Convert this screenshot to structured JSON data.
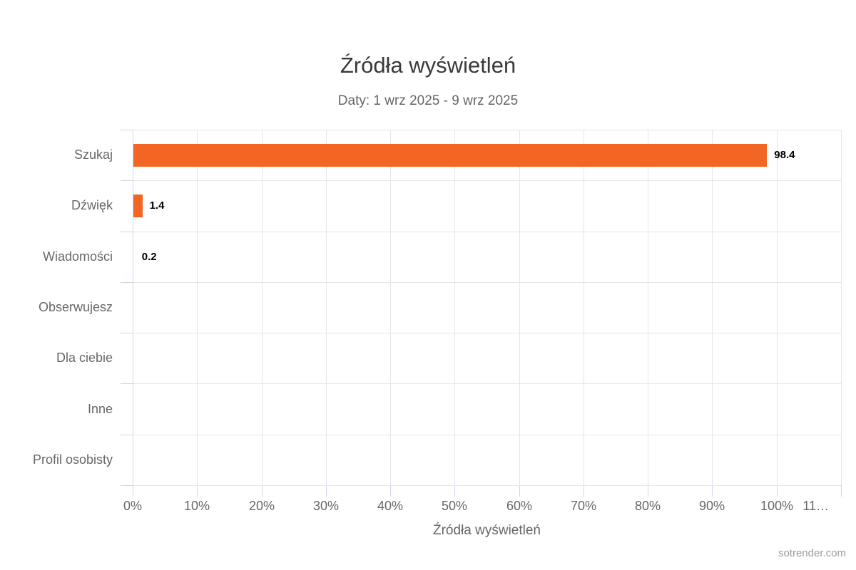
{
  "chart_data": {
    "type": "bar",
    "orientation": "horizontal",
    "title": "Źródła wyświetleń",
    "subtitle": "Daty: 1 wrz 2025 - 9 wrz 2025",
    "categories": [
      "Szukaj",
      "Dźwięk",
      "Wiadomości",
      "Obserwujesz",
      "Dla ciebie",
      "Inne",
      "Profil osobisty"
    ],
    "values": [
      98.4,
      1.4,
      0.2,
      null,
      null,
      null,
      null
    ],
    "value_labels": [
      "98.4",
      "1.4",
      "0.2",
      "",
      "",
      "",
      ""
    ],
    "xlabel": "Źródła wyświetleń",
    "x_ticks": [
      "0%",
      "10%",
      "20%",
      "30%",
      "40%",
      "50%",
      "60%",
      "70%",
      "80%",
      "90%",
      "100%",
      "11…"
    ],
    "xlim": [
      0,
      110
    ],
    "unit": "%",
    "grid": true,
    "legend": "none",
    "colors": {
      "bar": "#f26522",
      "axis_line": "#ccd6eb",
      "gridline": "#e6e6e6",
      "tick_label": "#65686b",
      "title": "#37393b",
      "subtitle": "#666666",
      "value_label": "#000000",
      "credits": "#9b9b9b",
      "background": "#ffffff"
    }
  },
  "credits": {
    "label": "sotrender.com"
  }
}
